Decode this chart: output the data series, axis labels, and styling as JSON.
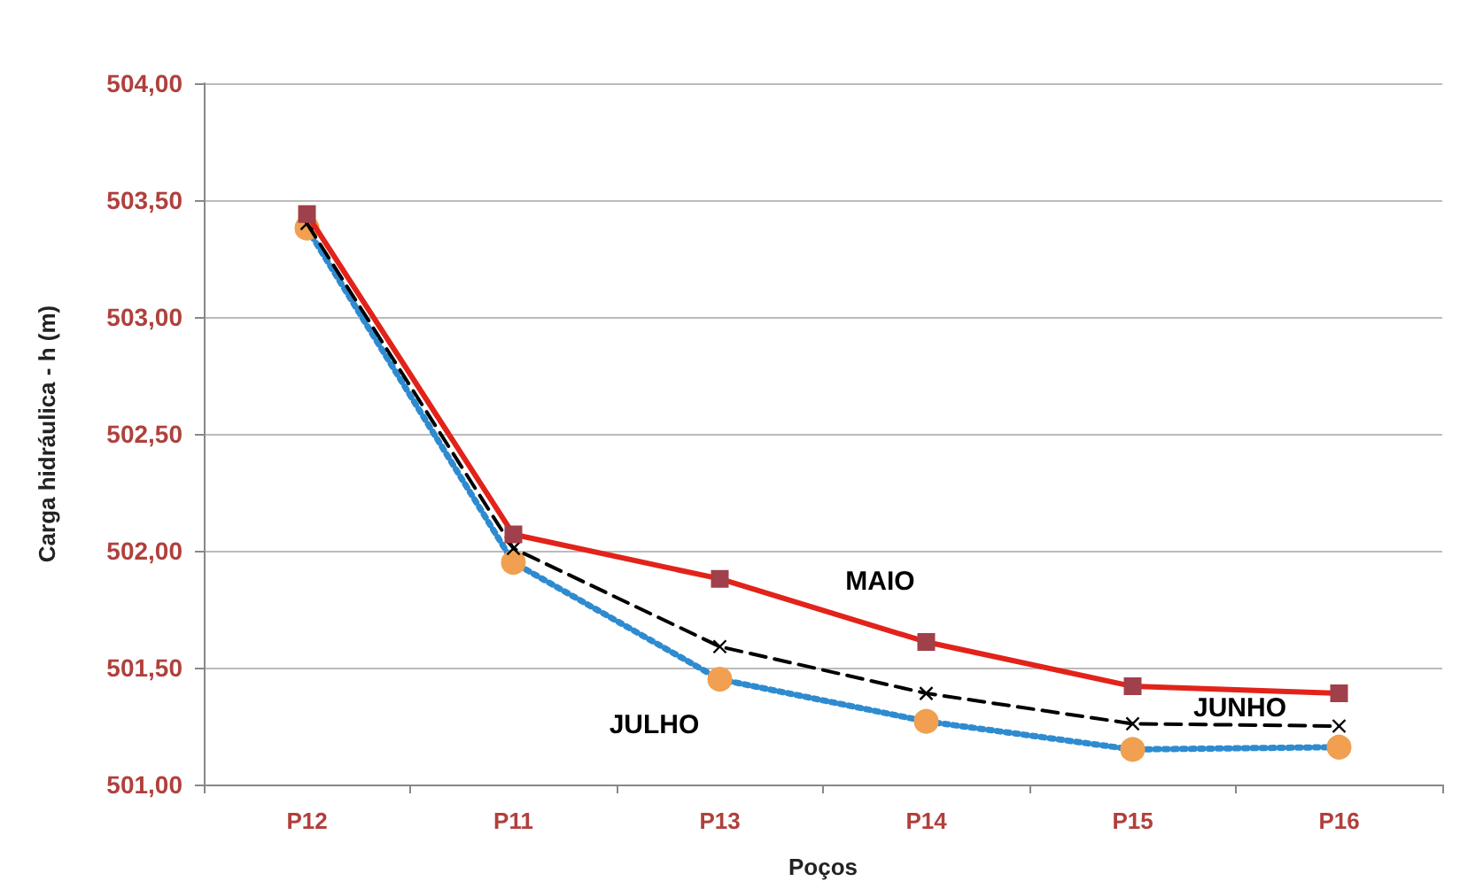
{
  "chart_data": {
    "type": "line",
    "xlabel": "Poços",
    "ylabel": "Carga hidráulica - h (m)",
    "categories": [
      "P12",
      "P11",
      "P13",
      "P14",
      "P15",
      "P16"
    ],
    "series": [
      {
        "name": "MAIO",
        "color": "#e2231a",
        "colors": [
          "#a0404a",
          "#a0404a",
          "#a0404a",
          "#a0404a",
          "#a0404a",
          "#a0404a"
        ],
        "marker": "square",
        "line_style": "solid",
        "values": [
          503.44,
          502.07,
          501.88,
          501.61,
          501.42,
          501.39
        ]
      },
      {
        "name": "JUNHO",
        "color": "#000000",
        "marker": "cross",
        "line_style": "dashed",
        "values": [
          503.4,
          502.01,
          501.59,
          501.39,
          501.26,
          501.25
        ]
      },
      {
        "name": "JULHO",
        "color": "#2e8bd0",
        "colors": [
          "#f0a050",
          "#f0a050",
          "#f0a050",
          "#f0a050",
          "#f0a050",
          "#f0a050"
        ],
        "marker": "circle",
        "line_style": "dotted",
        "values": [
          503.38,
          501.95,
          501.45,
          501.27,
          501.15,
          501.16
        ]
      }
    ],
    "ylim": [
      501,
      504
    ],
    "yticks": [
      {
        "value": 501,
        "label": "501,00"
      },
      {
        "value": 501.5,
        "label": "501,50"
      },
      {
        "value": 502,
        "label": "502,00"
      },
      {
        "value": 502.5,
        "label": "502,50"
      },
      {
        "value": 503,
        "label": "503,00"
      },
      {
        "value": 503.5,
        "label": "503,50"
      },
      {
        "value": 504,
        "label": "504,00"
      }
    ],
    "grid": "y",
    "legend": false
  }
}
